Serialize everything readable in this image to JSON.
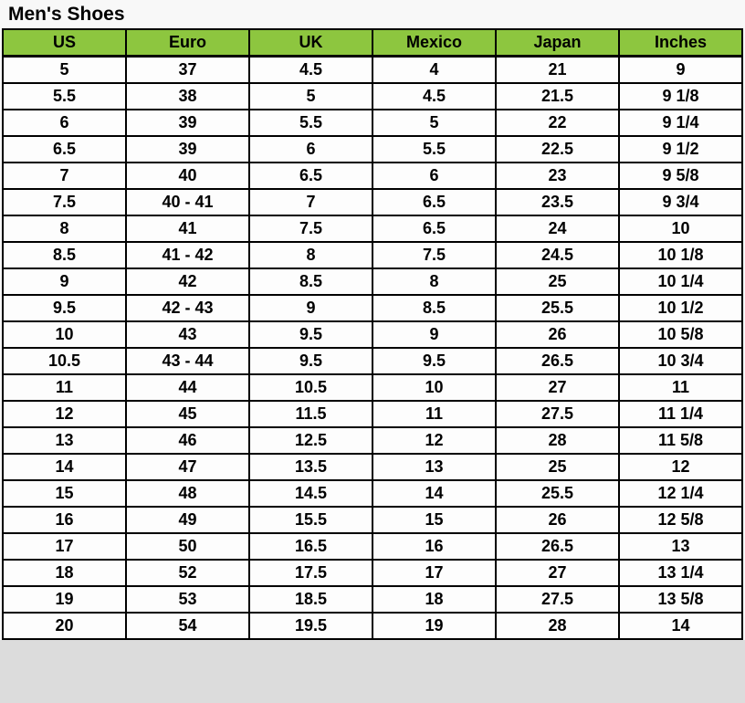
{
  "page": {
    "title": "Men's Shoes"
  },
  "colors": {
    "header_background": "#8dc63f",
    "border": "#000000",
    "cell_background": "#fdfdfd",
    "content_background": "#f8f8f8",
    "page_background": "#dcdcdc",
    "text": "#000000"
  },
  "chart_data": {
    "type": "table",
    "title": "Men's Shoes",
    "columns": [
      "US",
      "Euro",
      "UK",
      "Mexico",
      "Japan",
      "Inches"
    ],
    "rows": [
      [
        "5",
        "37",
        "4.5",
        "4",
        "21",
        "9"
      ],
      [
        "5.5",
        "38",
        "5",
        "4.5",
        "21.5",
        "9 1/8"
      ],
      [
        "6",
        "39",
        "5.5",
        "5",
        "22",
        "9 1/4"
      ],
      [
        "6.5",
        "39",
        "6",
        "5.5",
        "22.5",
        "9 1/2"
      ],
      [
        "7",
        "40",
        "6.5",
        "6",
        "23",
        "9 5/8"
      ],
      [
        "7.5",
        "40 - 41",
        "7",
        "6.5",
        "23.5",
        "9 3/4"
      ],
      [
        "8",
        "41",
        "7.5",
        "6.5",
        "24",
        "10"
      ],
      [
        "8.5",
        "41 - 42",
        "8",
        "7.5",
        "24.5",
        "10 1/8"
      ],
      [
        "9",
        "42",
        "8.5",
        "8",
        "25",
        "10 1/4"
      ],
      [
        "9.5",
        "42 - 43",
        "9",
        "8.5",
        "25.5",
        "10 1/2"
      ],
      [
        "10",
        "43",
        "9.5",
        "9",
        "26",
        "10 5/8"
      ],
      [
        "10.5",
        "43 - 44",
        "9.5",
        "9.5",
        "26.5",
        "10 3/4"
      ],
      [
        "11",
        "44",
        "10.5",
        "10",
        "27",
        "11"
      ],
      [
        "12",
        "45",
        "11.5",
        "11",
        "27.5",
        "11 1/4"
      ],
      [
        "13",
        "46",
        "12.5",
        "12",
        "28",
        "11 5/8"
      ],
      [
        "14",
        "47",
        "13.5",
        "13",
        "25",
        "12"
      ],
      [
        "15",
        "48",
        "14.5",
        "14",
        "25.5",
        "12 1/4"
      ],
      [
        "16",
        "49",
        "15.5",
        "15",
        "26",
        "12 5/8"
      ],
      [
        "17",
        "50",
        "16.5",
        "16",
        "26.5",
        "13"
      ],
      [
        "18",
        "52",
        "17.5",
        "17",
        "27",
        "13 1/4"
      ],
      [
        "19",
        "53",
        "18.5",
        "18",
        "27.5",
        "13 5/8"
      ],
      [
        "20",
        "54",
        "19.5",
        "19",
        "28",
        "14"
      ]
    ]
  }
}
